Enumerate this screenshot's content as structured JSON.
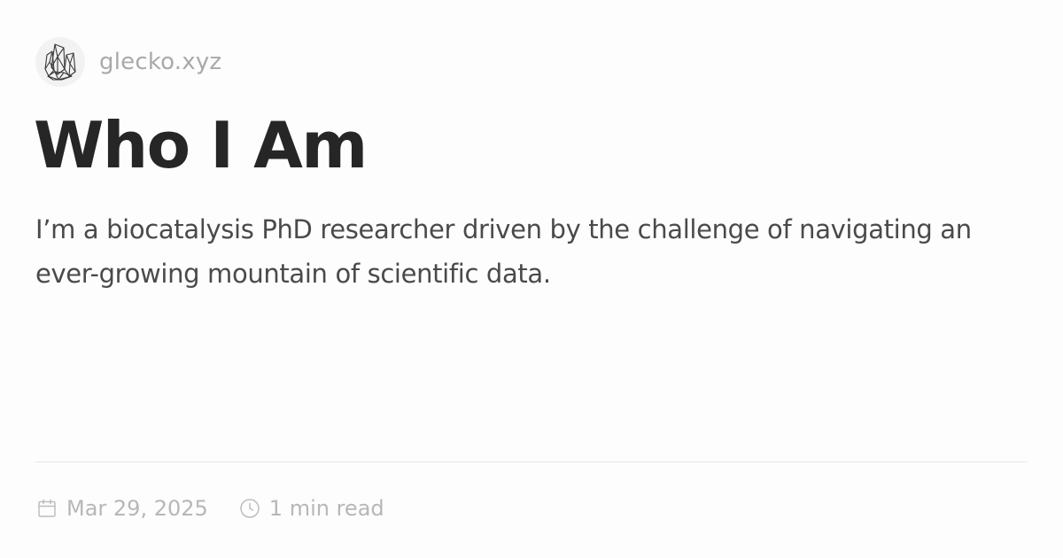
{
  "site": {
    "name": "glecko.xyz",
    "logo_icon": "crystal-cluster-icon"
  },
  "post": {
    "title": "Who I Am",
    "description": "I’m a biocatalysis PhD researcher driven by the challenge of navigating an ever-growing mountain of scientific data."
  },
  "meta": {
    "date": "Mar 29, 2025",
    "date_icon": "calendar-icon",
    "read_time": "1 min read",
    "read_time_icon": "clock-icon"
  },
  "colors": {
    "background": "#fdfdfd",
    "title": "#262626",
    "description": "#4a4a4a",
    "muted": "#b7b7b7",
    "divider": "#e6e6e6"
  }
}
